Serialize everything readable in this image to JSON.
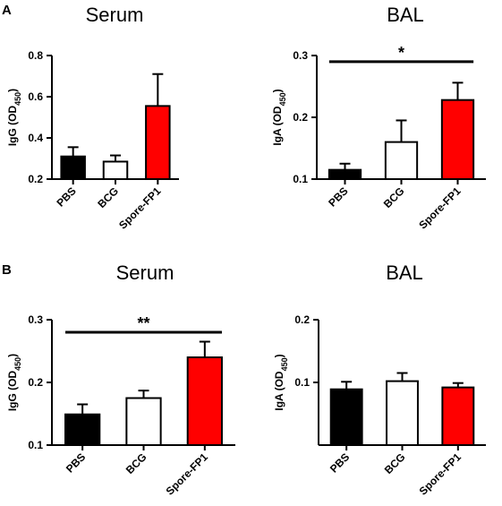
{
  "figure": {
    "panel_labels": [
      "A",
      "B"
    ]
  },
  "chart_data": [
    {
      "type": "bar",
      "panel": "A",
      "title": "Serum",
      "ylabel": "IgG (OD",
      "ylabel_sub": "450",
      "ylabel_close": ")",
      "categories": [
        "PBS",
        "BCG",
        "Spore-FP1"
      ],
      "values": [
        0.31,
        0.285,
        0.555
      ],
      "errors": [
        0.045,
        0.03,
        0.155
      ],
      "colors": [
        "#000000",
        "#ffffff",
        "#ff0000"
      ],
      "ylim": [
        0.2,
        0.8
      ],
      "yticks": [
        0.2,
        0.4,
        0.6,
        0.8
      ],
      "ytick_labels": [
        "0.2",
        "0.4",
        "0.6",
        "0.8"
      ],
      "significance": null
    },
    {
      "type": "bar",
      "panel": "A",
      "title": "BAL",
      "ylabel": "IgA (OD",
      "ylabel_sub": "450",
      "ylabel_close": ")",
      "categories": [
        "PBS",
        "BCG",
        "Spore-FP1"
      ],
      "values": [
        0.115,
        0.16,
        0.228
      ],
      "errors": [
        0.01,
        0.035,
        0.028
      ],
      "colors": [
        "#000000",
        "#ffffff",
        "#ff0000"
      ],
      "ylim": [
        0.1,
        0.3
      ],
      "yticks": [
        0.1,
        0.2,
        0.3
      ],
      "ytick_labels": [
        "0.1",
        "0.2",
        "0.3"
      ],
      "significance": {
        "from": 0,
        "to": 2,
        "label": "*",
        "y": 0.29
      }
    },
    {
      "type": "bar",
      "panel": "B",
      "title": "Serum",
      "ylabel": "IgG (OD",
      "ylabel_sub": "450",
      "ylabel_close": ")",
      "categories": [
        "PBS",
        "BCG",
        "Spore-FP1"
      ],
      "values": [
        0.149,
        0.175,
        0.24
      ],
      "errors": [
        0.016,
        0.012,
        0.025
      ],
      "colors": [
        "#000000",
        "#ffffff",
        "#ff0000"
      ],
      "ylim": [
        0.1,
        0.3
      ],
      "yticks": [
        0.1,
        0.2,
        0.3
      ],
      "ytick_labels": [
        "0.1",
        "0.2",
        "0.3"
      ],
      "significance": {
        "from": 0,
        "to": 2,
        "label": "**",
        "y": 0.28
      }
    },
    {
      "type": "bar",
      "panel": "B",
      "title": "BAL",
      "ylabel": "IgA (OD",
      "ylabel_sub": "450",
      "ylabel_close": ")",
      "categories": [
        "PBS",
        "BCG",
        "Spore-FP1"
      ],
      "values": [
        0.089,
        0.102,
        0.092
      ],
      "errors": [
        0.012,
        0.013,
        0.007
      ],
      "colors": [
        "#000000",
        "#ffffff",
        "#ff0000"
      ],
      "ylim": [
        0.0,
        0.2
      ],
      "yticks": [
        0.1,
        0.2
      ],
      "ytick_labels": [
        "0.1",
        "0.2"
      ],
      "significance": null
    }
  ]
}
